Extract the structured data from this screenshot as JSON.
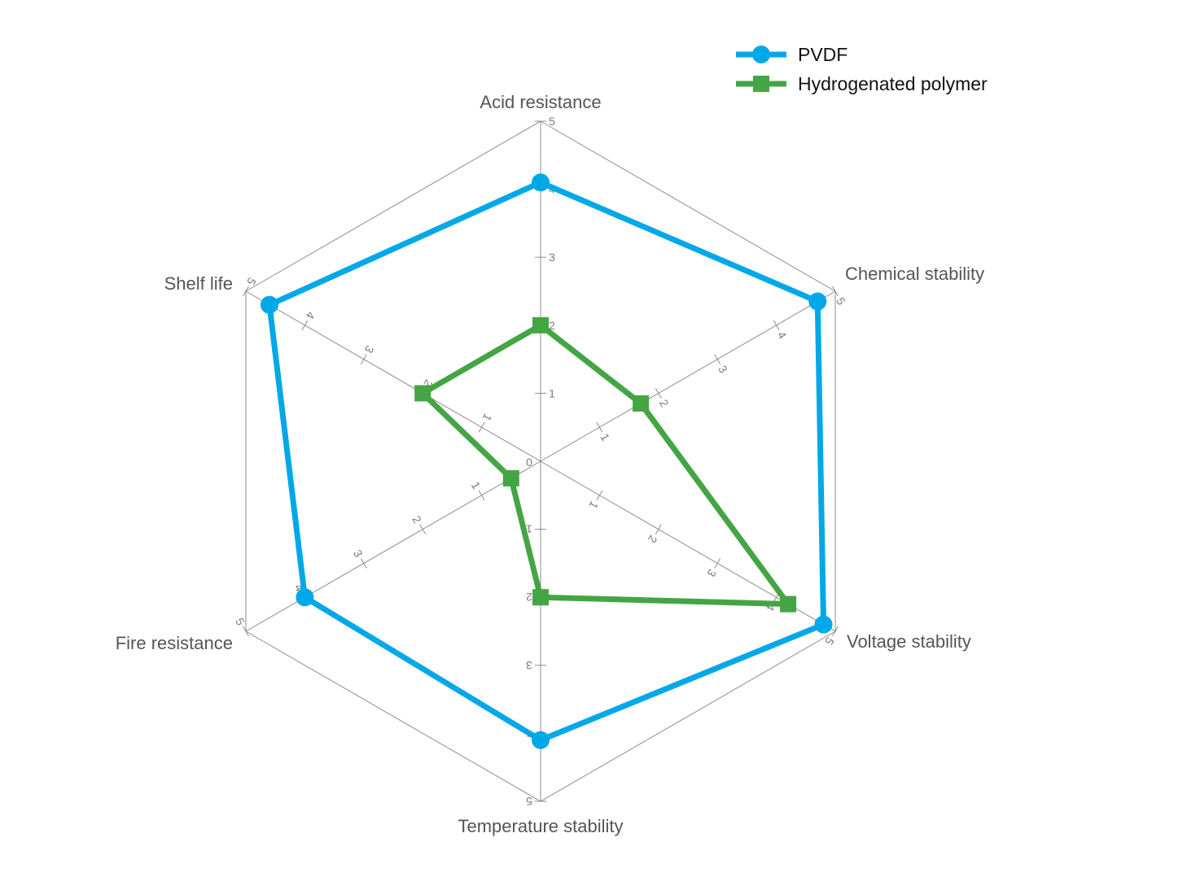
{
  "chart_data": {
    "type": "radar",
    "axes": [
      "Acid resistance",
      "Chemical stability",
      "Voltage stability",
      "Temperature stability",
      "Fire resistance",
      "Shelf life"
    ],
    "range": [
      0,
      5
    ],
    "ticks": [
      0,
      1,
      2,
      3,
      4,
      5
    ],
    "series": [
      {
        "name": "PVDF",
        "color": "#00a8e8",
        "marker": "circle",
        "values": [
          4.1,
          4.7,
          4.8,
          4.1,
          4.0,
          4.6
        ]
      },
      {
        "name": "Hydrogenated polymer",
        "color": "#44a544",
        "marker": "square",
        "values": [
          2.0,
          1.7,
          4.2,
          2.0,
          0.5,
          2.0
        ]
      }
    ],
    "legend": "top-right",
    "grid": true
  }
}
